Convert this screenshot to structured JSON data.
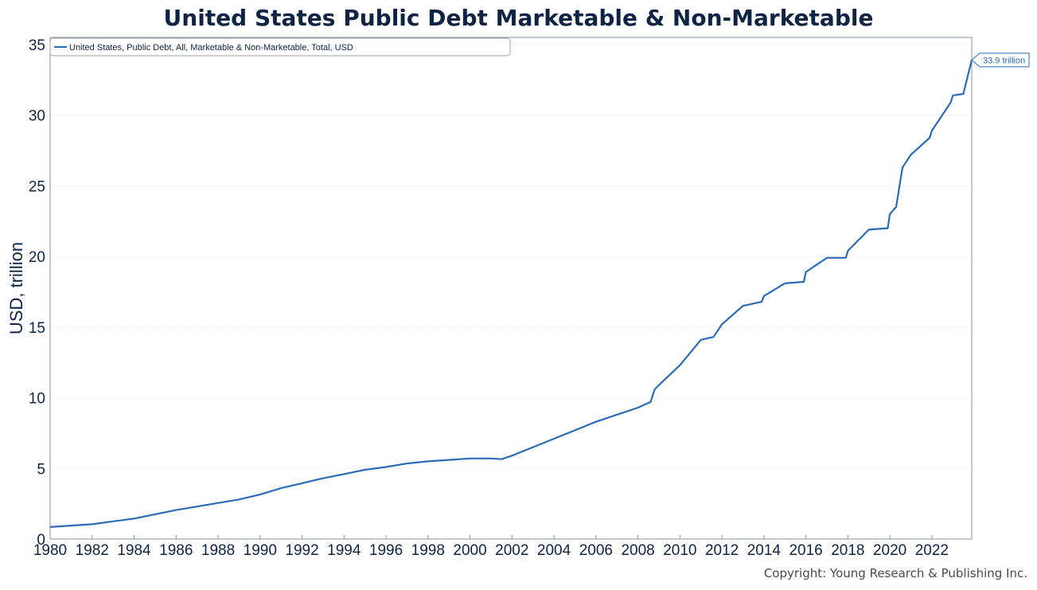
{
  "chart_data": {
    "type": "line",
    "title": "United States Public Debt Marketable & Non-Marketable",
    "ylabel": "USD, trillion",
    "xlabel": "",
    "xlim": [
      1980,
      2023.9
    ],
    "ylim": [
      0,
      35.5
    ],
    "x_ticks": [
      "1980",
      "1982",
      "1984",
      "1986",
      "1988",
      "1990",
      "1992",
      "1994",
      "1996",
      "1998",
      "2000",
      "2002",
      "2004",
      "2006",
      "2008",
      "2010",
      "2012",
      "2014",
      "2016",
      "2018",
      "2020",
      "2022"
    ],
    "y_ticks": [
      "0",
      "5",
      "10",
      "15",
      "20",
      "25",
      "30",
      "35"
    ],
    "grid": "horizontal",
    "legend_position": "top-left",
    "series": [
      {
        "name": "United States, Public Debt, All, Marketable & Non-Marketable, Total, USD",
        "color": "#2a6bb8",
        "x": [
          1980,
          1981,
          1982,
          1983,
          1984,
          1985,
          1986,
          1987,
          1988,
          1989,
          1990,
          1991,
          1992,
          1993,
          1994,
          1995,
          1996,
          1997,
          1998,
          1999,
          2000,
          2001,
          2001.5,
          2002,
          2003,
          2004,
          2005,
          2006,
          2007,
          2008,
          2008.3,
          2008.6,
          2008.8,
          2009,
          2010,
          2011,
          2011.6,
          2012,
          2013,
          2013.9,
          2014,
          2015,
          2015.9,
          2016,
          2017,
          2017.9,
          2018,
          2019,
          2019.9,
          2020,
          2020.3,
          2020.6,
          2021,
          2021.9,
          2022,
          2022.9,
          2023,
          2023.5,
          2023.9
        ],
        "y": [
          0.85,
          0.95,
          1.05,
          1.25,
          1.45,
          1.75,
          2.05,
          2.3,
          2.55,
          2.8,
          3.15,
          3.6,
          3.95,
          4.3,
          4.6,
          4.9,
          5.1,
          5.35,
          5.5,
          5.6,
          5.7,
          5.7,
          5.65,
          5.9,
          6.5,
          7.1,
          7.7,
          8.3,
          8.8,
          9.3,
          9.5,
          9.7,
          10.6,
          10.9,
          12.3,
          14.1,
          14.3,
          15.2,
          16.5,
          16.8,
          17.2,
          18.1,
          18.2,
          18.9,
          19.9,
          19.9,
          20.4,
          21.9,
          22.0,
          23.0,
          23.5,
          26.3,
          27.2,
          28.4,
          28.9,
          30.9,
          31.4,
          31.5,
          33.9
        ]
      }
    ],
    "annotations": [
      {
        "text": "33.9 trillion",
        "x": 2023.9,
        "y": 33.9
      }
    ]
  },
  "footer": {
    "copyright": "Copyright: Young Research & Publishing Inc."
  }
}
